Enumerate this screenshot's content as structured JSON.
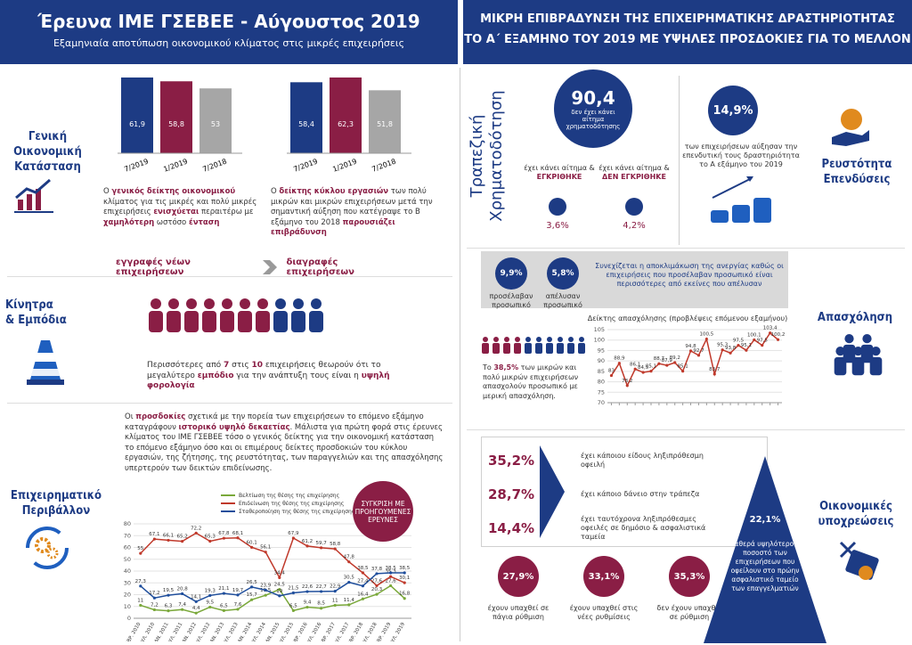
{
  "header_left": {
    "title": "Έρευνα ΙΜΕ ΓΣΕΒΕΕ - Αύγουστος 2019",
    "subtitle": "Εξαμηνιαία αποτύπωση οικονομικού κλίματος στις μικρές επιχειρήσεις"
  },
  "header_right": {
    "lines": [
      "ΜΙΚΡΗ ΕΠΙΒΡΑΔΥΝΣΗ ΤΗΣ ΕΠΙΧΕΙΡΗΜΑΤΙΚΗΣ ΔΡΑΣΤΗΡΙΟΤΗΤΑΣ",
      "ΤΟ Α΄ ΕΞΑΜΗΝΟ ΤΟΥ 2019 ΜΕ ΥΨΗΛΕΣ ΠΡΟΣΔΟΚΙΕΣ ΓΙΑ ΤΟ ΜΕΛΛΟΝ"
    ]
  },
  "general": {
    "label": [
      "Γενική",
      "Οικονομική",
      "Κατάσταση"
    ],
    "text_left": [
      "Ο ",
      "γενικός δείκτης οικονομικού",
      " κλίματος για τις μικρές και πολύ μικρές επιχειρήσεις ",
      "ενισχύεται",
      " περαιτέρω με ",
      "χαμηλότερη",
      " ωστόσο ",
      "ένταση"
    ],
    "text_right": [
      "Ο ",
      "δείκτης κύκλου εργασιών",
      " των πολύ μικρών και μικρών επιχειρήσεων μετά την σημαντική αύξηση που κατέγραψε το Β εξάμηνο του 2018 ",
      "παρουσιάζει επιβράδυνση"
    ],
    "banner": [
      "εγγραφές νέων επιχειρήσεων",
      "διαγραφές επιχειρήσεων"
    ]
  },
  "obstacles": {
    "label": [
      "Κίνητρα",
      "& Εμπόδια"
    ],
    "text": [
      "Περισσότερες από ",
      "7",
      " στις ",
      "10",
      " επιχειρήσεις θεωρούν ότι το μεγαλύτερο ",
      "εμπόδιο",
      " για την ανάπτυξη τους είναι η ",
      "υψηλή φορολογία"
    ]
  },
  "environment": {
    "label": [
      "Επιχειρηματικό",
      "Περιβάλλον"
    ],
    "text": [
      "Οι ",
      "προσδοκίες",
      " σχετικά με την πορεία των επιχειρήσεων το επόμενο εξάμηνο καταγράφουν ",
      "ιστορικό υψηλό δεκαετίας",
      ". Μάλιστα για πρώτη φορά στις έρευνες κλίματος του ΙΜΕ ΓΣΕΒΕΕ τόσο ο γενικός δείκτης για την οικονομική κατάσταση το επόμενο εξάμηνο όσο και οι επιμέρους δείκτες προσδοκιών του κύκλου εργασιών, της ζήτησης, της ρευστότητας, των παραγγελιών και της απασχόλησης υπερτερούν των δεικτών επιδείνωσης."
    ],
    "badge": "ΣΥΓΚΡΙΣΗ ΜΕ ΠΡΟΗΓΟΥΜΕΝΕΣ ΕΡΕΥΝΕΣ"
  },
  "finance": {
    "label": "Τραπεζική Χρηματοδότηση",
    "main_value": "90,4",
    "main_text": "δεν έχει κάνει αίτημα χρηματοδότησης",
    "approved_text": "έχει κάνει αίτημα &",
    "approved": "ΕΓΚΡΙΘΗΚΕ",
    "approved_value": "3,6%",
    "rejected_text": "έχει κάνει αίτημα &",
    "rejected": "ΔΕΝ ΕΓΚΡΙΘΗΚΕ",
    "rejected_value": "4,2%"
  },
  "liquidity": {
    "label": [
      "Ρευστότητα",
      "Επενδύσεις"
    ],
    "value": "14,9%",
    "text": "των επιχειρήσεων αύξησαν την επενδυτική τους δραστηριότητα το Α εξάμηνο του 2019"
  },
  "employment": {
    "label": "Απασχόληση",
    "hired_value": "9,9%",
    "hired_text": "προσέλαβαν προσωπικό",
    "fired_value": "5,8%",
    "fired_text": "απέλυσαν προσωπικό",
    "note": "Συνεχίζεται η αποκλιμάκωση της ανεργίας καθώς οι επιχειρήσεις που προσέλαβαν προσωπικό είναι περισσότερες από εκείνες που απέλυσαν",
    "text": [
      "Το ",
      "38,5%",
      " των μικρών και πολύ μικρών επιχειρήσεων απασχολούν προσωπικό με μερική απασχόληση."
    ]
  },
  "obligations": {
    "label": [
      "Οικονομικές",
      "υποχρεώσεις"
    ],
    "items": [
      {
        "value": "35,2%",
        "text": "έχει κάποιου είδους ληξιπρόθεσμη οφειλή"
      },
      {
        "value": "28,7%",
        "text": "έχει κάποιο δάνειο στην τράπεζα"
      },
      {
        "value": "14,4%",
        "text": "έχει ταυτόχρονα ληξιπρόθεσμες οφειλές σε δημόσιο & ασφαλιστικά ταμεία"
      }
    ],
    "settlements": [
      {
        "value": "27,9%",
        "text": "έχουν υπαχθεί σε πάγια ρύθμιση"
      },
      {
        "value": "33,1%",
        "text": "έχουν υπαχθεί στις νέες ρυθμίσεις"
      },
      {
        "value": "35,3%",
        "text": "δεν έχουν υπαχθεί σε ρύθμιση"
      }
    ],
    "triangle_value": "22,1%",
    "triangle_text": "Σταθερά υψηλότερο το ποσοστό των επιχειρήσεων που οφείλουν στο πρώην ασφαλιστικό ταμείο των επαγγελματιών"
  },
  "chart_data": [
    {
      "type": "bar",
      "categories": [
        "7/2019",
        "1/2019",
        "7/2018"
      ],
      "values": [
        61.9,
        58.8,
        53
      ],
      "value_labels": [
        "61,9",
        "58,8",
        "53"
      ],
      "colors": [
        "#1d3b84",
        "#8a1e45",
        "#a6a6a6"
      ]
    },
    {
      "type": "bar",
      "categories": [
        "7/2019",
        "1/2019",
        "7/2018"
      ],
      "values": [
        58.4,
        62.3,
        51.8
      ],
      "value_labels": [
        "58,4",
        "62,3",
        "51,8"
      ],
      "colors": [
        "#1d3b84",
        "#8a1e45",
        "#a6a6a6"
      ]
    },
    {
      "type": "line",
      "categories": [
        "ΦΕΒΡ. 2010",
        "ΙΟΥΛ. 2010",
        "ΙΑΝ. 2011",
        "ΙΟΥΛ. 2011",
        "ΙΑΝ. 2012",
        "ΙΟΥΛ. 2012",
        "ΙΑΝ. 2013",
        "ΙΟΥΛ. 2013",
        "ΙΑΝ. 2014",
        "ΙΟΥΛ. 2014",
        "ΙΑΝ. 2015",
        "ΙΟΥΛ. 2015",
        "ΦΕΒΡ. 2016",
        "ΙΟΥΛ. 2016",
        "ΦΕΒΡ. 2017",
        "ΙΟΥΛ. 2017",
        "ΦΕΒΡ. 2018",
        "ΙΟΥΛ. 2018",
        "ΦΕΒΡ. 2019",
        "ΙΟΥΛ. 2019"
      ],
      "series": [
        {
          "name": "Βελτίωση της θέσης της επιχείρησης",
          "color": "#7aa83a",
          "values": [
            11,
            7.2,
            6.3,
            7.4,
            4.4,
            9.5,
            6.5,
            7.6,
            15.7,
            19.5,
            24.5,
            6.5,
            9.4,
            8.5,
            11,
            11.4,
            16.4,
            20.3,
            27.6,
            16.8
          ],
          "value_labels": [
            "11",
            "7,2",
            "6,3",
            "7,4",
            "4,4",
            "9,5",
            "6,5",
            "7,6",
            "15,7",
            "19,5",
            "24,5",
            "6,5",
            "9,4",
            "8,5",
            "11",
            "11,4",
            "16,4",
            "20,3",
            "27,6",
            "16,8"
          ]
        },
        {
          "name": "Επιδείνωση της θέσης της επιχείρησης",
          "color": "#c0392b",
          "values": [
            55,
            67.1,
            66.1,
            65.2,
            72.2,
            65.3,
            67.8,
            68.1,
            60.1,
            56.1,
            34.4,
            67.9,
            61.2,
            59.7,
            58.8,
            47.8,
            38.5,
            27.6,
            35.3,
            30.1
          ],
          "value_labels": [
            "55",
            "67,1",
            "66,1",
            "65,2",
            "72,2",
            "65,3",
            "67,8",
            "68,1",
            "60,1",
            "56,1",
            "34,4",
            "67,9",
            "61,2",
            "59,7",
            "58,8",
            "47,8",
            "38,5",
            "27,6",
            "35,3",
            "30,1"
          ]
        },
        {
          "name": "Σταθεροποίηση της θέσης της επιχείρησης",
          "color": "#1f4e9c",
          "values": [
            27.3,
            17.2,
            19.5,
            20.8,
            14.1,
            19.3,
            21.1,
            19.7,
            26.5,
            23.9,
            19,
            21.5,
            22.6,
            22.7,
            22.9,
            30.5,
            27.4,
            37.8,
            38.5,
            38.5
          ],
          "value_labels": [
            "27,3",
            "17,2",
            "19,5",
            "20,8",
            "14,1",
            "19,3",
            "21,1",
            "19,7",
            "26,5",
            "23,9",
            "19",
            "21,5",
            "22,6",
            "22,7",
            "22,9",
            "30,5",
            "27,4",
            "37,8",
            "38,5",
            "38,5"
          ]
        }
      ],
      "ylim": [
        0,
        80
      ],
      "yticks": [
        0,
        10,
        20,
        30,
        40,
        50,
        60,
        70,
        80
      ],
      "grid": true,
      "legend": "top"
    },
    {
      "type": "line",
      "title": "Δείκτης απασχόλησης (προβλέψεις επόμενου εξαμήνου)",
      "categories": [
        null,
        null,
        null,
        null,
        null,
        null,
        null,
        null,
        null,
        null,
        null,
        null,
        null,
        null,
        null,
        null,
        null,
        null,
        null,
        null,
        null,
        null
      ],
      "series": [
        {
          "name": null,
          "color": "#c0392b",
          "values": [
            83,
            88.9,
            78.2,
            86.1,
            84.5,
            85.1,
            88.7,
            87.9,
            89.2,
            85.1,
            94.8,
            92.7,
            100.5,
            83.7,
            95.3,
            93.8,
            97.5,
            95.1,
            100.1,
            97.5,
            103.4,
            100.2
          ],
          "value_labels": [
            "83",
            "88,9",
            "78,2",
            "86,1",
            "84,5",
            "85,1",
            "88,7",
            "87,9",
            "89,2",
            "85,1",
            "94,8",
            "92,7",
            "100,5",
            "83,7",
            "95,3",
            "93,8",
            "97,5",
            "95,1",
            "100,1",
            "97,5",
            "103,4",
            "100,2"
          ]
        }
      ],
      "ylim": [
        70,
        105
      ],
      "yticks": [
        70,
        75,
        80,
        85,
        90,
        95,
        100,
        105
      ],
      "grid": true
    }
  ]
}
